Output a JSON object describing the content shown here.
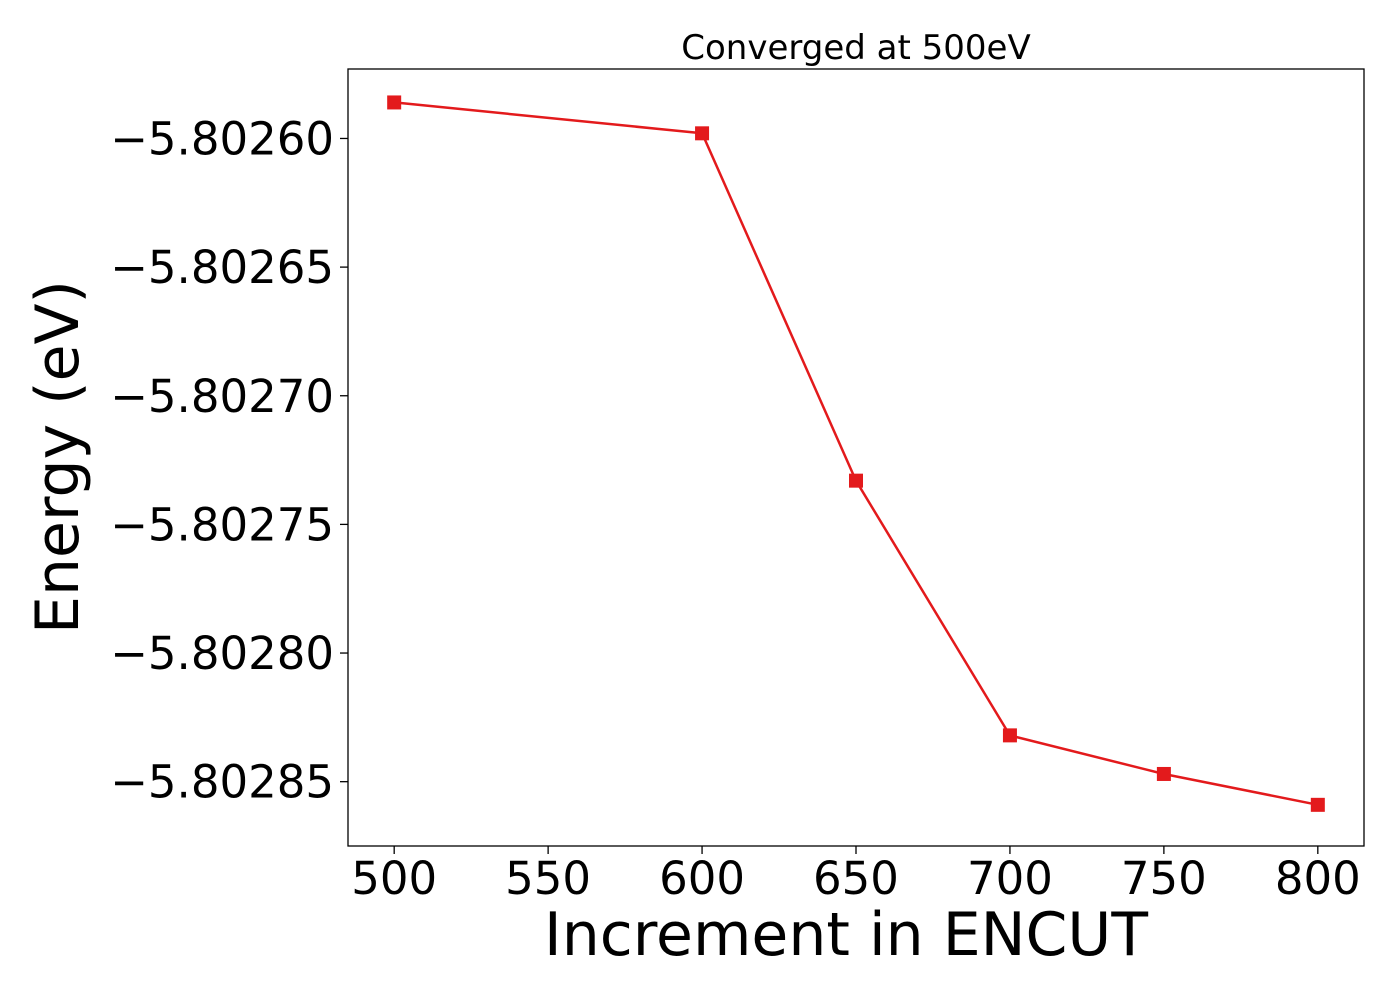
{
  "chart_data": {
    "type": "line",
    "title": "Converged at 500eV",
    "xlabel": "Increment in ENCUT",
    "ylabel": "Energy (eV)",
    "xlim": [
      485,
      815
    ],
    "ylim": [
      -5.802875,
      -5.802573
    ],
    "x_ticks": [
      500,
      550,
      600,
      650,
      700,
      750,
      800
    ],
    "x_tick_labels": [
      "500",
      "550",
      "600",
      "650",
      "700",
      "750",
      "800"
    ],
    "y_ticks": [
      -5.8026,
      -5.80265,
      -5.8027,
      -5.80275,
      -5.8028,
      -5.80285
    ],
    "y_tick_labels": [
      "−5.80260",
      "−5.80265",
      "−5.80270",
      "−5.80275",
      "−5.80280",
      "−5.80285"
    ],
    "grid": false,
    "series": [
      {
        "color": "#e31a1c",
        "marker": "square",
        "x": [
          500,
          600,
          650,
          700,
          750,
          800
        ],
        "y": [
          -5.802586,
          -5.802598,
          -5.802733,
          -5.802832,
          -5.802847,
          -5.802859
        ]
      }
    ]
  }
}
